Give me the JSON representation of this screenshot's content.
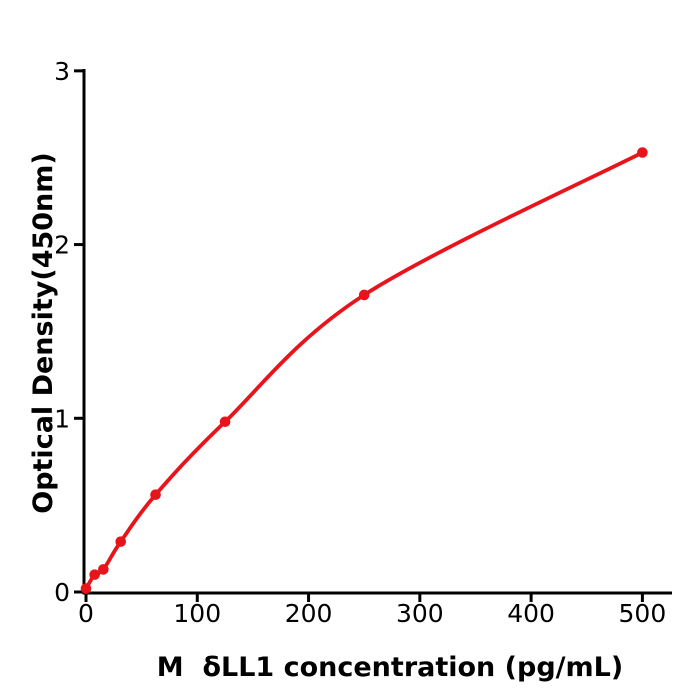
{
  "figure": {
    "background": "#ffffff",
    "axis_color": "#000000",
    "curve_color": "#e8141c",
    "point_color": "#e8141c"
  },
  "chart_data": {
    "type": "line",
    "title": "",
    "xlabel": "M  δLL1 concentration (pg/mL)",
    "ylabel": "Optical Density(450nm)",
    "x": [
      0,
      7.8,
      15.6,
      31.2,
      62.5,
      125,
      250,
      500
    ],
    "y": [
      0.02,
      0.1,
      0.13,
      0.29,
      0.56,
      0.98,
      1.71,
      2.53
    ],
    "xlim": [
      0,
      500
    ],
    "ylim": [
      0,
      3
    ],
    "x_ticks": [
      0,
      100,
      200,
      300,
      400,
      500
    ],
    "y_ticks": [
      0,
      1,
      2,
      3
    ],
    "grid": false,
    "legend": "none",
    "marker": "circle",
    "line_style": "smooth"
  }
}
